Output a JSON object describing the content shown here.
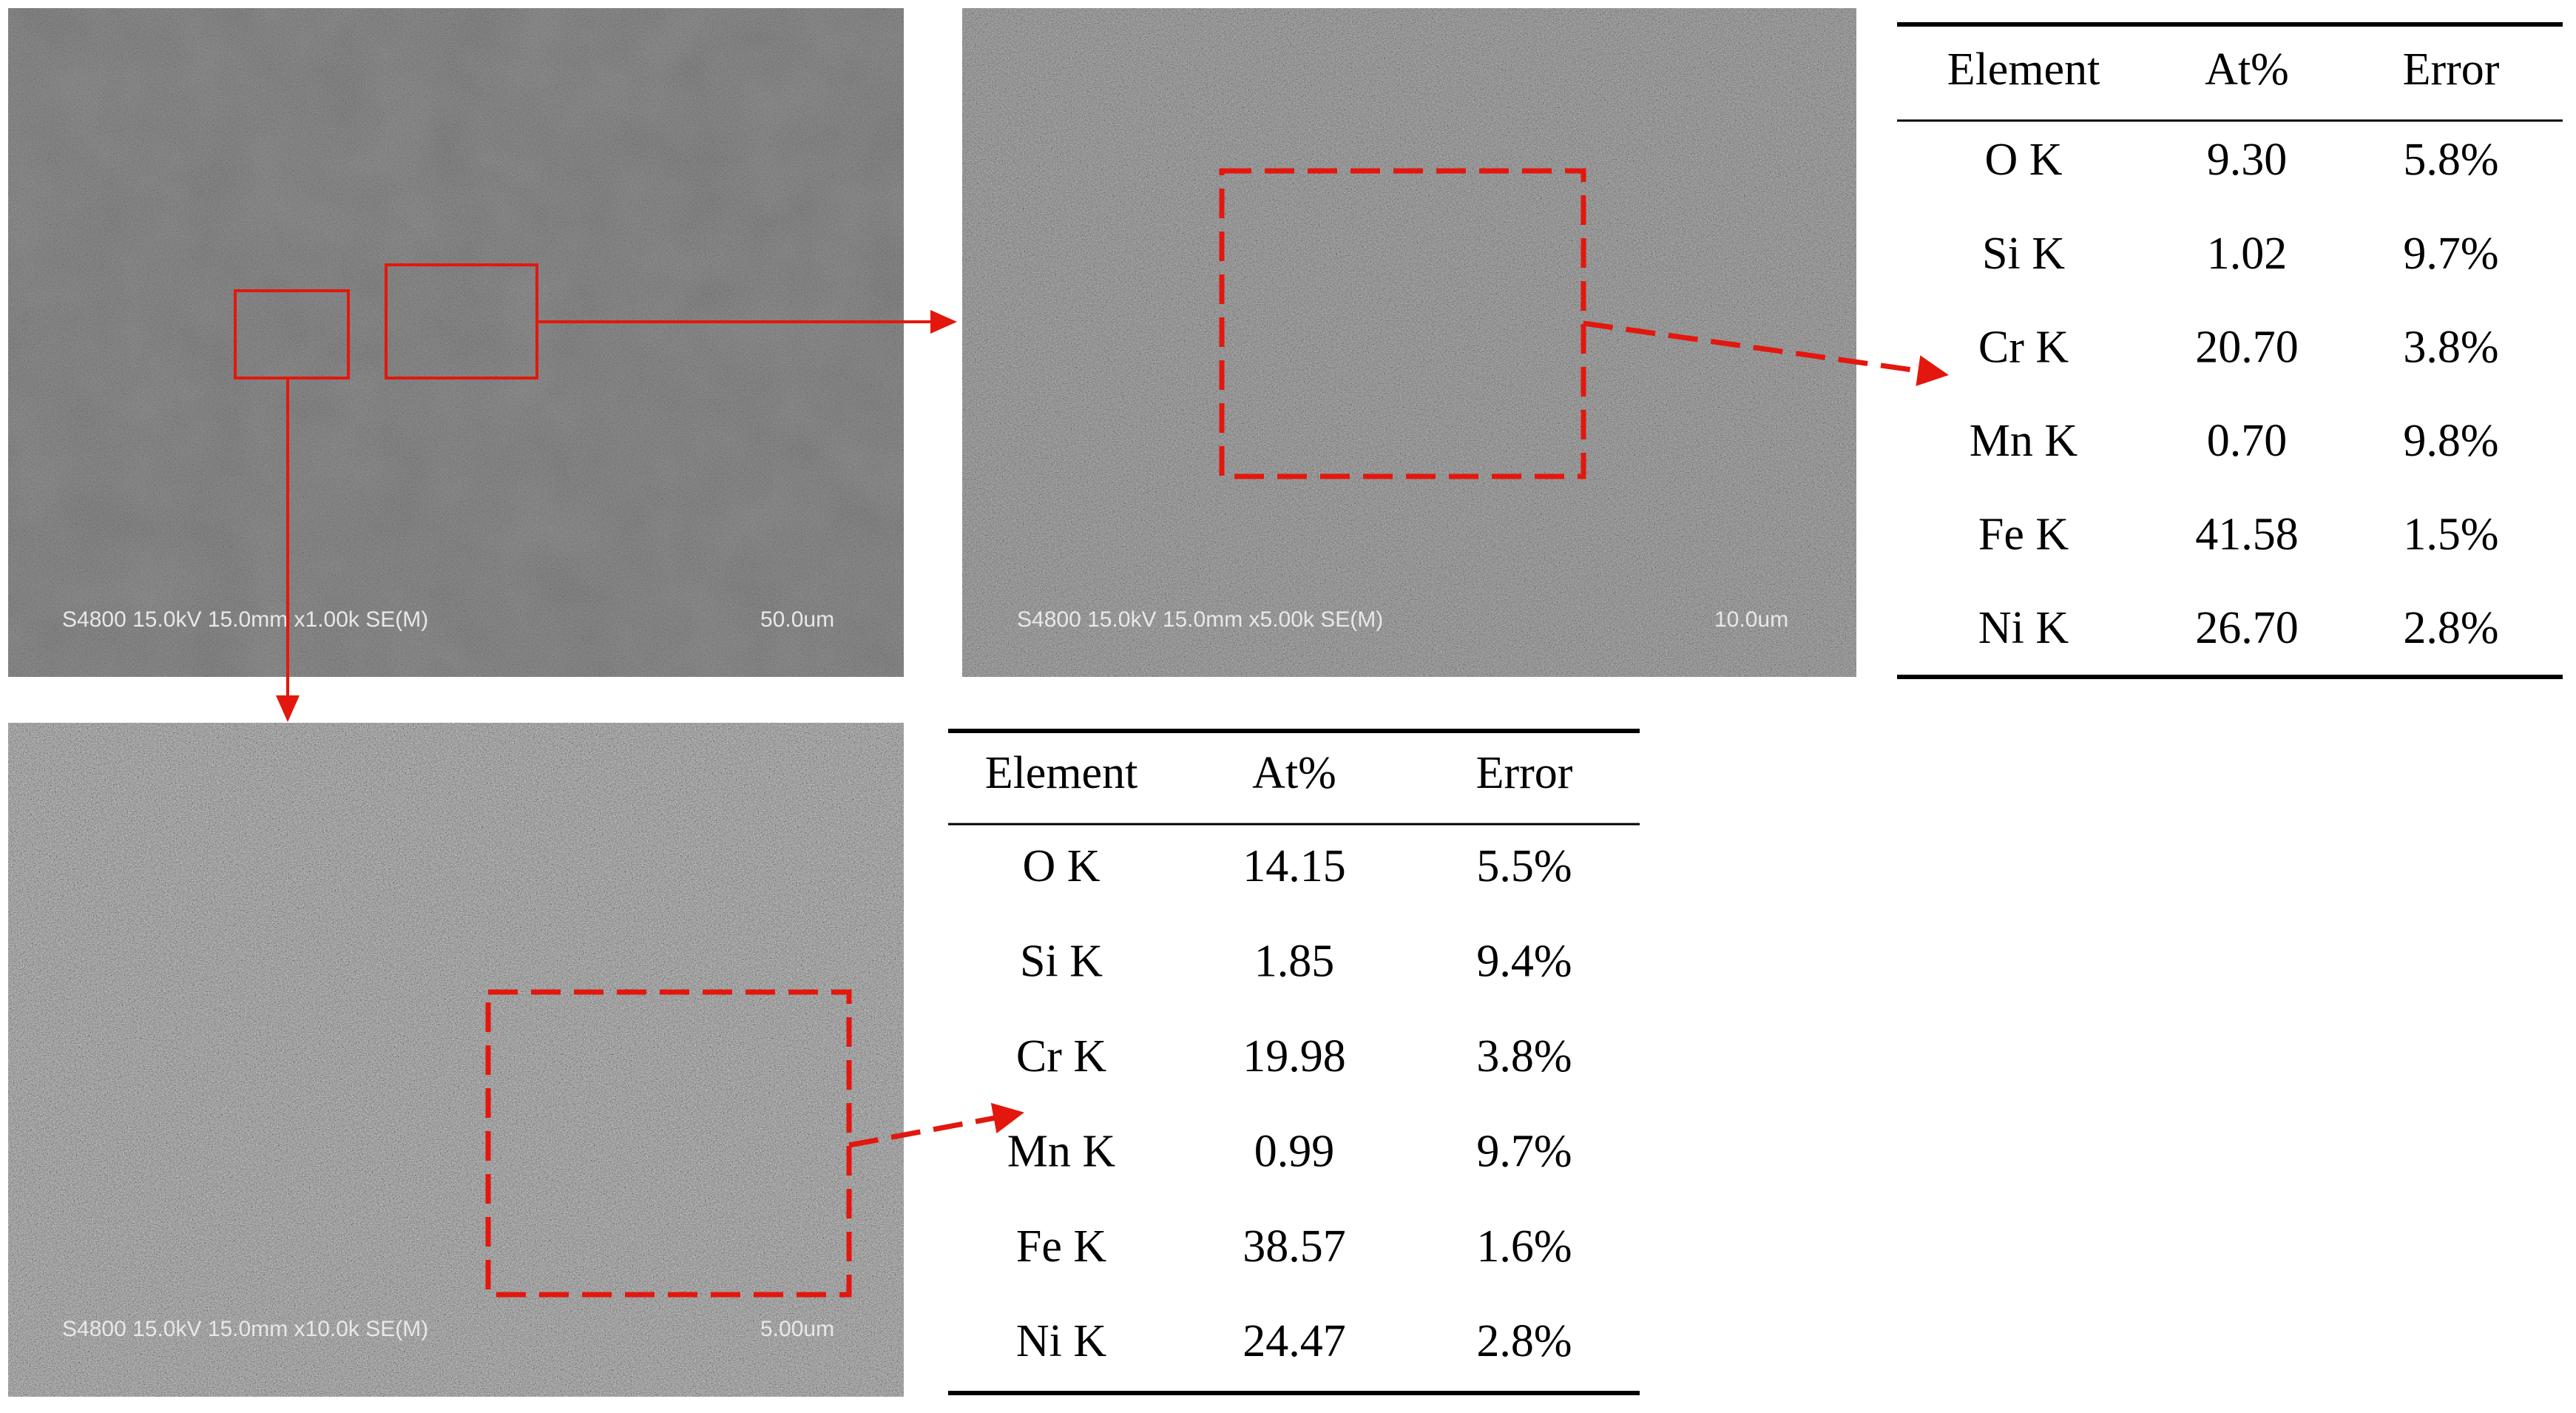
{
  "images": [
    {
      "label": "S4800 15.0kV 15.0mm x1.00k SE(M)",
      "scale": "50.0um"
    },
    {
      "label": "S4800 15.0kV 15.0mm x5.00k SE(M)",
      "scale": "10.0um"
    },
    {
      "label": "S4800 15.0kV 15.0mm x10.0k SE(M)",
      "scale": "5.00um"
    }
  ],
  "tables": [
    {
      "header": [
        "Element",
        "At%",
        "Error"
      ],
      "rows": [
        [
          "O K",
          "9.30",
          "5.8%"
        ],
        [
          "Si K",
          "1.02",
          "9.7%"
        ],
        [
          "Cr K",
          "20.70",
          "3.8%"
        ],
        [
          "Mn K",
          "0.70",
          "9.8%"
        ],
        [
          "Fe K",
          "41.58",
          "1.5%"
        ],
        [
          "Ni K",
          "26.70",
          "2.8%"
        ]
      ]
    },
    {
      "header": [
        "Element",
        "At%",
        "Error"
      ],
      "rows": [
        [
          "O K",
          "14.15",
          "5.5%"
        ],
        [
          "Si K",
          "1.85",
          "9.4%"
        ],
        [
          "Cr K",
          "19.98",
          "3.8%"
        ],
        [
          "Mn K",
          "0.99",
          "9.7%"
        ],
        [
          "Fe K",
          "38.57",
          "1.6%"
        ],
        [
          "Ni K",
          "24.47",
          "2.8%"
        ]
      ]
    }
  ]
}
